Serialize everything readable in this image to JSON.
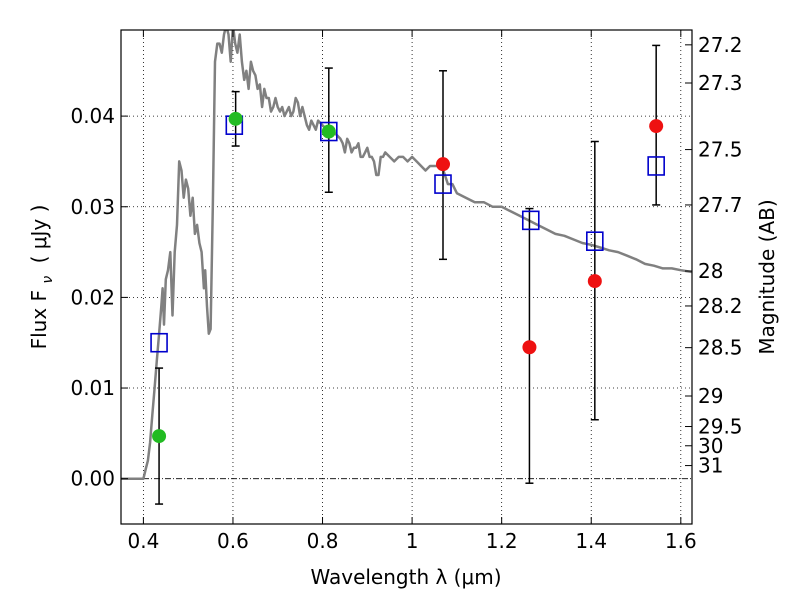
{
  "chart_data": {
    "type": "scatter",
    "xlabel": "Wavelength  λ (μm)",
    "ylabel": "Flux  F",
    "ylabel_sub": "ν",
    "ylabel_unit": "(  μJy )",
    "y2label": "Magnitude (AB)",
    "xlim": [
      0.35,
      1.625
    ],
    "ylim": [
      -0.005,
      0.0495
    ],
    "x_ticks": [
      0.4,
      0.6,
      0.8,
      1.0,
      1.2,
      1.4,
      1.6
    ],
    "x_tick_labels": [
      "0.4",
      "0.6",
      "0.8",
      "1",
      "1.2",
      "1.4",
      "1.6"
    ],
    "y_ticks": [
      0.0,
      0.01,
      0.02,
      0.03,
      0.04
    ],
    "y_tick_labels": [
      "0.00",
      "0.01",
      "0.02",
      "0.03",
      "0.04"
    ],
    "mag_ticks": [
      27.2,
      27.3,
      27.5,
      27.7,
      28,
      28.2,
      28.5,
      29,
      29.5,
      30,
      31
    ],
    "mag_tick_labels": [
      "27.2",
      "27.3",
      "27.5",
      "27.7",
      "28",
      "28.2",
      "28.5",
      "29",
      "29.5",
      "30",
      "31"
    ],
    "grid": true,
    "colors": {
      "model": "#808080",
      "squares": "#0000cc",
      "green": "#22bb22",
      "red": "#ee1111",
      "errorbar": "#000000"
    },
    "series": [
      {
        "kind": "model_line",
        "points": [
          [
            0.35,
            0.0
          ],
          [
            0.4,
            0.0
          ],
          [
            0.405,
            0.001
          ],
          [
            0.41,
            0.002
          ],
          [
            0.415,
            0.004
          ],
          [
            0.42,
            0.007
          ],
          [
            0.425,
            0.01
          ],
          [
            0.43,
            0.013
          ],
          [
            0.435,
            0.016
          ],
          [
            0.44,
            0.019
          ],
          [
            0.443,
            0.021
          ],
          [
            0.446,
            0.017
          ],
          [
            0.45,
            0.022
          ],
          [
            0.455,
            0.023
          ],
          [
            0.46,
            0.025
          ],
          [
            0.465,
            0.018
          ],
          [
            0.47,
            0.025
          ],
          [
            0.475,
            0.028
          ],
          [
            0.48,
            0.035
          ],
          [
            0.485,
            0.034
          ],
          [
            0.49,
            0.031
          ],
          [
            0.495,
            0.033
          ],
          [
            0.5,
            0.032
          ],
          [
            0.505,
            0.029
          ],
          [
            0.51,
            0.031
          ],
          [
            0.515,
            0.027
          ],
          [
            0.52,
            0.028
          ],
          [
            0.525,
            0.026
          ],
          [
            0.53,
            0.025
          ],
          [
            0.535,
            0.021
          ],
          [
            0.538,
            0.023
          ],
          [
            0.542,
            0.019
          ],
          [
            0.546,
            0.016
          ],
          [
            0.55,
            0.0165
          ],
          [
            0.555,
            0.03
          ],
          [
            0.56,
            0.046
          ],
          [
            0.565,
            0.048
          ],
          [
            0.57,
            0.048
          ],
          [
            0.575,
            0.047
          ],
          [
            0.58,
            0.049
          ],
          [
            0.585,
            0.05
          ],
          [
            0.59,
            0.049
          ],
          [
            0.595,
            0.046
          ],
          [
            0.6,
            0.05
          ],
          [
            0.605,
            0.048
          ],
          [
            0.61,
            0.047
          ],
          [
            0.615,
            0.049
          ],
          [
            0.62,
            0.046
          ],
          [
            0.625,
            0.044
          ],
          [
            0.63,
            0.045
          ],
          [
            0.635,
            0.043
          ],
          [
            0.64,
            0.046
          ],
          [
            0.645,
            0.045
          ],
          [
            0.65,
            0.0445
          ],
          [
            0.655,
            0.043
          ],
          [
            0.66,
            0.0435
          ],
          [
            0.665,
            0.041
          ],
          [
            0.67,
            0.043
          ],
          [
            0.675,
            0.042
          ],
          [
            0.68,
            0.042
          ],
          [
            0.685,
            0.0405
          ],
          [
            0.69,
            0.041
          ],
          [
            0.695,
            0.042
          ],
          [
            0.7,
            0.041
          ],
          [
            0.705,
            0.0405
          ],
          [
            0.71,
            0.041
          ],
          [
            0.715,
            0.04
          ],
          [
            0.72,
            0.0405
          ],
          [
            0.725,
            0.041
          ],
          [
            0.73,
            0.04
          ],
          [
            0.735,
            0.0405
          ],
          [
            0.74,
            0.042
          ],
          [
            0.745,
            0.0415
          ],
          [
            0.75,
            0.04
          ],
          [
            0.755,
            0.041
          ],
          [
            0.76,
            0.04
          ],
          [
            0.765,
            0.039
          ],
          [
            0.77,
            0.0385
          ],
          [
            0.775,
            0.0395
          ],
          [
            0.78,
            0.039
          ],
          [
            0.785,
            0.0385
          ],
          [
            0.79,
            0.0395
          ],
          [
            0.8,
            0.039
          ],
          [
            0.81,
            0.0385
          ],
          [
            0.82,
            0.0385
          ],
          [
            0.83,
            0.038
          ],
          [
            0.84,
            0.0375
          ],
          [
            0.845,
            0.037
          ],
          [
            0.85,
            0.036
          ],
          [
            0.855,
            0.0375
          ],
          [
            0.86,
            0.037
          ],
          [
            0.865,
            0.036
          ],
          [
            0.87,
            0.0365
          ],
          [
            0.875,
            0.0365
          ],
          [
            0.88,
            0.037
          ],
          [
            0.885,
            0.0355
          ],
          [
            0.89,
            0.0355
          ],
          [
            0.895,
            0.036
          ],
          [
            0.9,
            0.0365
          ],
          [
            0.905,
            0.0355
          ],
          [
            0.91,
            0.0355
          ],
          [
            0.915,
            0.035
          ],
          [
            0.92,
            0.0335
          ],
          [
            0.925,
            0.0335
          ],
          [
            0.93,
            0.0355
          ],
          [
            0.935,
            0.0355
          ],
          [
            0.94,
            0.036
          ],
          [
            0.95,
            0.0355
          ],
          [
            0.96,
            0.035
          ],
          [
            0.97,
            0.0355
          ],
          [
            0.98,
            0.0355
          ],
          [
            0.99,
            0.035
          ],
          [
            1.0,
            0.0355
          ],
          [
            1.01,
            0.035
          ],
          [
            1.02,
            0.0345
          ],
          [
            1.03,
            0.034
          ],
          [
            1.04,
            0.0345
          ],
          [
            1.05,
            0.0345
          ],
          [
            1.06,
            0.0345
          ],
          [
            1.07,
            0.034
          ],
          [
            1.08,
            0.0325
          ],
          [
            1.09,
            0.0325
          ],
          [
            1.1,
            0.0315
          ],
          [
            1.12,
            0.031
          ],
          [
            1.14,
            0.0305
          ],
          [
            1.16,
            0.0305
          ],
          [
            1.18,
            0.03
          ],
          [
            1.2,
            0.03
          ],
          [
            1.22,
            0.0295
          ],
          [
            1.24,
            0.029
          ],
          [
            1.26,
            0.0285
          ],
          [
            1.28,
            0.028
          ],
          [
            1.3,
            0.0275
          ],
          [
            1.32,
            0.027
          ],
          [
            1.34,
            0.0268
          ],
          [
            1.36,
            0.0264
          ],
          [
            1.38,
            0.026
          ],
          [
            1.4,
            0.0258
          ],
          [
            1.42,
            0.0255
          ],
          [
            1.44,
            0.0252
          ],
          [
            1.46,
            0.025
          ],
          [
            1.48,
            0.0246
          ],
          [
            1.5,
            0.0242
          ],
          [
            1.52,
            0.0237
          ],
          [
            1.54,
            0.0235
          ],
          [
            1.56,
            0.0232
          ],
          [
            1.58,
            0.0232
          ],
          [
            1.6,
            0.023
          ],
          [
            1.625,
            0.0228
          ]
        ]
      },
      {
        "kind": "model_squares",
        "points": [
          [
            0.435,
            0.015
          ],
          [
            0.603,
            0.039
          ],
          [
            0.814,
            0.0383
          ],
          [
            1.069,
            0.0325
          ],
          [
            1.265,
            0.0285
          ],
          [
            1.408,
            0.0262
          ],
          [
            1.545,
            0.0345
          ]
        ]
      },
      {
        "kind": "observed_points",
        "points": [
          {
            "x": 0.435,
            "y": 0.0047,
            "err_lo": -0.0028,
            "err_hi": 0.0122,
            "color": "green"
          },
          {
            "x": 0.606,
            "y": 0.0397,
            "err_lo": 0.0367,
            "err_hi": 0.0427,
            "color": "green"
          },
          {
            "x": 0.814,
            "y": 0.0383,
            "err_lo": 0.0316,
            "err_hi": 0.0453,
            "color": "green"
          },
          {
            "x": 1.069,
            "y": 0.0347,
            "err_lo": 0.0242,
            "err_hi": 0.045,
            "color": "red"
          },
          {
            "x": 1.262,
            "y": 0.0145,
            "err_lo": -0.0005,
            "err_hi": 0.0298,
            "color": "red"
          },
          {
            "x": 1.408,
            "y": 0.0218,
            "err_lo": 0.0065,
            "err_hi": 0.0372,
            "color": "red"
          },
          {
            "x": 1.545,
            "y": 0.0389,
            "err_lo": 0.0302,
            "err_hi": 0.0478,
            "color": "red"
          }
        ]
      }
    ]
  }
}
